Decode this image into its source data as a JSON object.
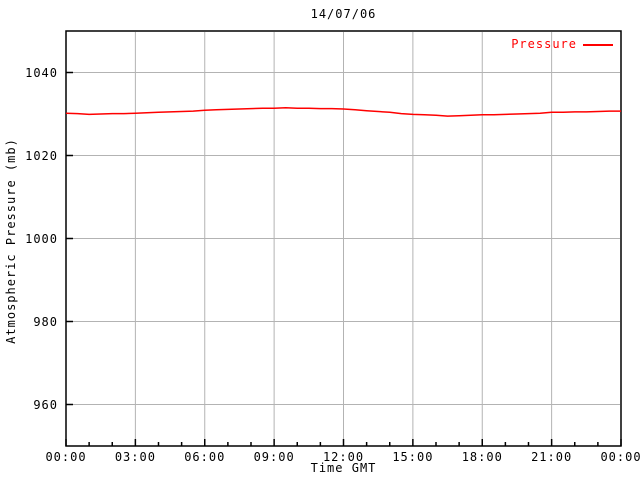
{
  "chart_data": {
    "type": "line",
    "title": "14/07/06",
    "xlabel": "Time GMT",
    "ylabel": "Atmospheric Pressure (mb)",
    "grid": true,
    "legend_position": "top-right",
    "xlim": [
      0,
      24
    ],
    "ylim": [
      950,
      1050
    ],
    "x_major_ticks": [
      0,
      3,
      6,
      9,
      12,
      15,
      18,
      21,
      24
    ],
    "x_tick_labels": [
      "00:00",
      "03:00",
      "06:00",
      "09:00",
      "12:00",
      "15:00",
      "18:00",
      "21:00",
      "00:00"
    ],
    "x_minor_tick_interval_hours": 1,
    "y_ticks": [
      960,
      980,
      1000,
      1020,
      1040
    ],
    "y_tick_labels": [
      "960",
      "980",
      "1000",
      "1020",
      "1040"
    ],
    "colors": {
      "line": "#ff0000",
      "grid": "#b3b3b3",
      "axis": "#000000",
      "background": "#ffffff",
      "legend_text": "#ff0000"
    },
    "series": [
      {
        "name": "Pressure",
        "x": [
          0,
          0.5,
          1,
          1.5,
          2,
          2.5,
          3,
          3.5,
          4,
          4.5,
          5,
          5.5,
          6,
          6.5,
          7,
          7.5,
          8,
          8.5,
          9,
          9.5,
          10,
          10.5,
          11,
          11.5,
          12,
          12.5,
          13,
          13.5,
          14,
          14.5,
          15,
          15.5,
          16,
          16.5,
          17,
          17.5,
          18,
          18.5,
          19,
          19.5,
          20,
          20.5,
          21,
          21.5,
          22,
          22.5,
          23,
          23.5,
          24
        ],
        "values": [
          1030.2,
          1030.1,
          1029.9,
          1030.0,
          1030.1,
          1030.1,
          1030.2,
          1030.3,
          1030.4,
          1030.5,
          1030.6,
          1030.7,
          1030.9,
          1031.0,
          1031.1,
          1031.2,
          1031.3,
          1031.4,
          1031.4,
          1031.5,
          1031.4,
          1031.4,
          1031.3,
          1031.3,
          1031.2,
          1031.0,
          1030.8,
          1030.6,
          1030.4,
          1030.1,
          1029.9,
          1029.8,
          1029.7,
          1029.5,
          1029.6,
          1029.7,
          1029.8,
          1029.8,
          1029.9,
          1030.0,
          1030.1,
          1030.2,
          1030.4,
          1030.4,
          1030.5,
          1030.5,
          1030.6,
          1030.7,
          1030.7
        ]
      }
    ]
  }
}
